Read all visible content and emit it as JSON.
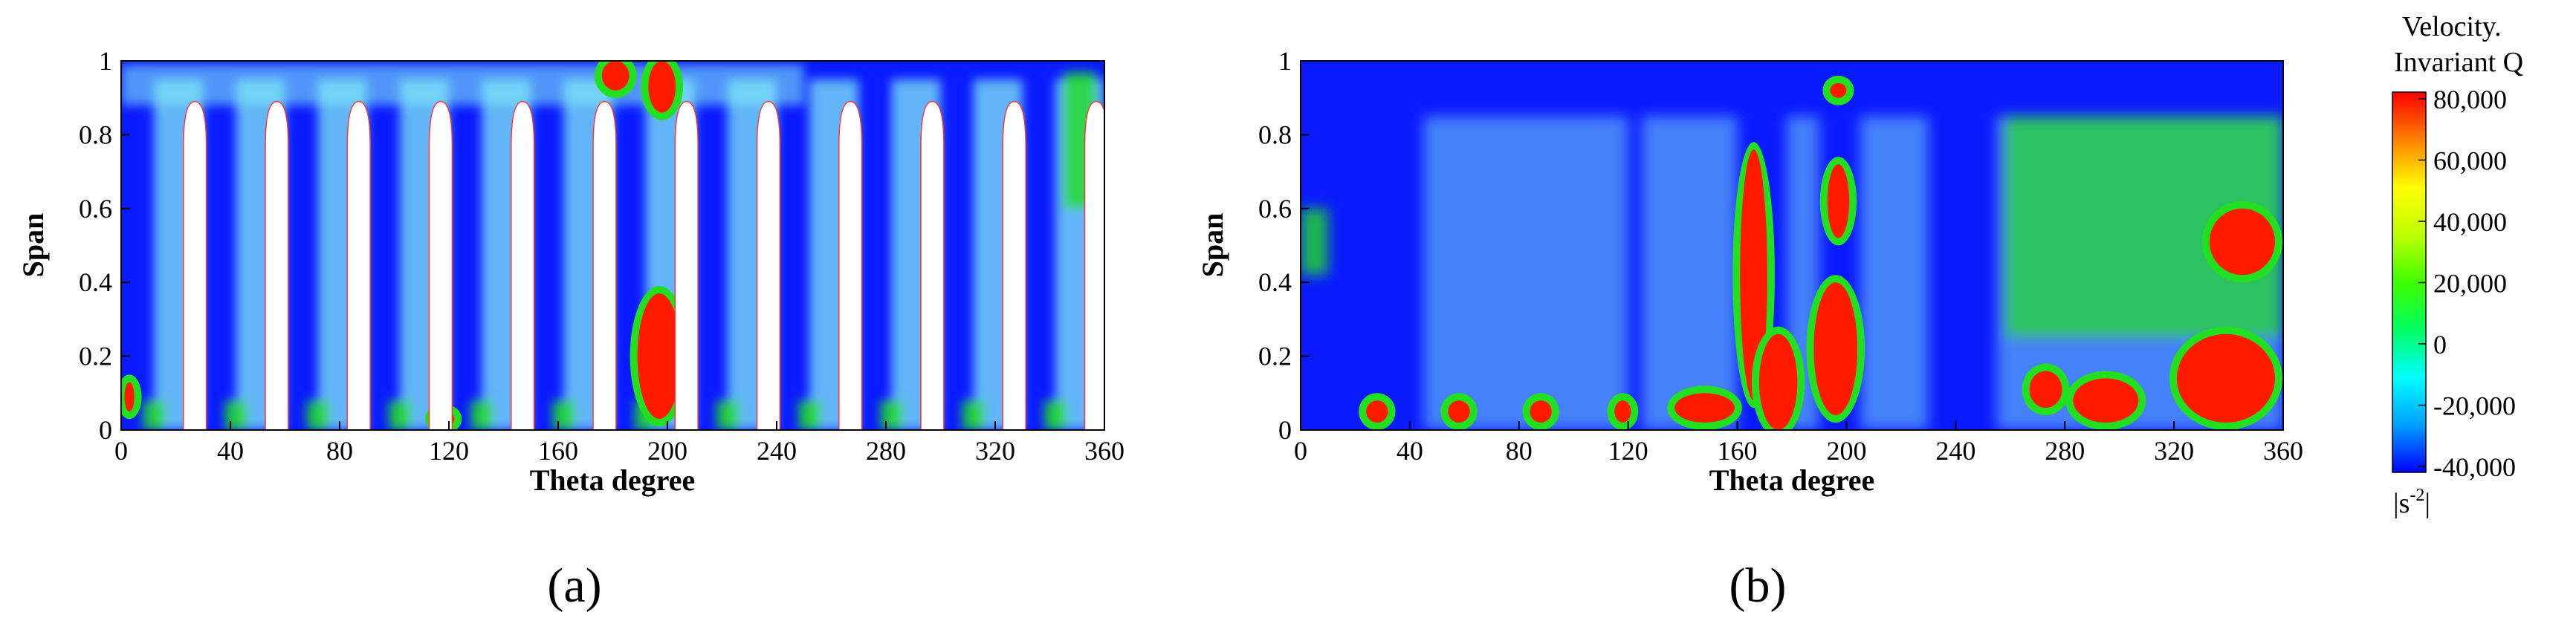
{
  "chart_data": [
    {
      "type": "heatmap",
      "panel_label": "(a)",
      "xlabel": "Theta degree",
      "ylabel": "Span",
      "xlim": [
        0,
        360
      ],
      "ylim": [
        0,
        1
      ],
      "xticks": [
        0,
        40,
        80,
        120,
        160,
        200,
        240,
        280,
        320,
        360
      ],
      "yticks": [
        0,
        0.2,
        0.4,
        0.6,
        0.8,
        1
      ],
      "ytick_labels": [
        "0",
        "0.2",
        "0.4",
        "0.6",
        "0.8",
        "1"
      ],
      "blades": {
        "theta": [
          27,
          57,
          87,
          117,
          147,
          177,
          207,
          237,
          267,
          297,
          327,
          357
        ],
        "tip_span": 0.89,
        "half_width_deg": 4.2
      },
      "high_q_regions": [
        {
          "theta": 197,
          "span": 0.2,
          "theta_halfwidth": 8,
          "span_halfwidth": 0.17
        },
        {
          "theta": 198,
          "span": 0.93,
          "theta_halfwidth": 5,
          "span_halfwidth": 0.07
        },
        {
          "theta": 181,
          "span": 0.96,
          "theta_halfwidth": 5,
          "span_halfwidth": 0.04
        },
        {
          "theta": 3,
          "span": 0.09,
          "theta_halfwidth": 1.8,
          "span_halfwidth": 0.04
        },
        {
          "theta": 118,
          "span": 0.03,
          "theta_halfwidth": 4,
          "span_halfwidth": 0.02
        }
      ]
    },
    {
      "type": "heatmap",
      "panel_label": "(b)",
      "xlabel": "Theta degree",
      "ylabel": "Span",
      "xlim": [
        0,
        360
      ],
      "ylim": [
        0,
        1
      ],
      "xticks": [
        0,
        40,
        80,
        120,
        160,
        200,
        240,
        280,
        320,
        360
      ],
      "yticks": [
        0,
        0.2,
        0.4,
        0.6,
        0.8,
        1
      ],
      "ytick_labels": [
        "0",
        "0.2",
        "0.4",
        "0.6",
        "0.8",
        "1"
      ],
      "high_q_regions": [
        {
          "theta": 166,
          "span": 0.42,
          "theta_halfwidth": 5,
          "span_halfwidth": 0.34
        },
        {
          "theta": 175,
          "span": 0.13,
          "theta_halfwidth": 7,
          "span_halfwidth": 0.13
        },
        {
          "theta": 196,
          "span": 0.22,
          "theta_halfwidth": 8,
          "span_halfwidth": 0.18
        },
        {
          "theta": 197,
          "span": 0.62,
          "theta_halfwidth": 4,
          "span_halfwidth": 0.1
        },
        {
          "theta": 197,
          "span": 0.92,
          "theta_halfwidth": 3,
          "span_halfwidth": 0.02
        },
        {
          "theta": 148,
          "span": 0.06,
          "theta_halfwidth": 11,
          "span_halfwidth": 0.04
        },
        {
          "theta": 28,
          "span": 0.05,
          "theta_halfwidth": 4,
          "span_halfwidth": 0.03
        },
        {
          "theta": 58,
          "span": 0.05,
          "theta_halfwidth": 4,
          "span_halfwidth": 0.03
        },
        {
          "theta": 88,
          "span": 0.05,
          "theta_halfwidth": 4,
          "span_halfwidth": 0.03
        },
        {
          "theta": 118,
          "span": 0.05,
          "theta_halfwidth": 3,
          "span_halfwidth": 0.03
        },
        {
          "theta": 273,
          "span": 0.11,
          "theta_halfwidth": 6,
          "span_halfwidth": 0.05
        },
        {
          "theta": 295,
          "span": 0.08,
          "theta_halfwidth": 12,
          "span_halfwidth": 0.06
        },
        {
          "theta": 339,
          "span": 0.14,
          "theta_halfwidth": 18,
          "span_halfwidth": 0.12
        },
        {
          "theta": 345,
          "span": 0.51,
          "theta_halfwidth": 12,
          "span_halfwidth": 0.09
        }
      ]
    }
  ],
  "colorbar": {
    "title_line1": "Velocity.",
    "title_line2": "Invariant Q",
    "tick_labels": [
      "80,000",
      "60,000",
      "40,000",
      "20,000",
      "0",
      "-20,000",
      "-40,000"
    ],
    "range": [
      -40000,
      80000
    ],
    "unit_prefix": "|s",
    "unit_exp": "-2",
    "unit_suffix": "|",
    "colors": [
      "#0000ff",
      "#00a0ff",
      "#00ffff",
      "#00ff60",
      "#40ff00",
      "#c0ff00",
      "#ffff00",
      "#ff8000",
      "#ff0000"
    ]
  },
  "colors": {
    "low": "#0a1aff",
    "mid_cyan": "#7fe8f5",
    "green": "#22e020",
    "high": "#ff1a00",
    "blade": "#ffffff"
  }
}
